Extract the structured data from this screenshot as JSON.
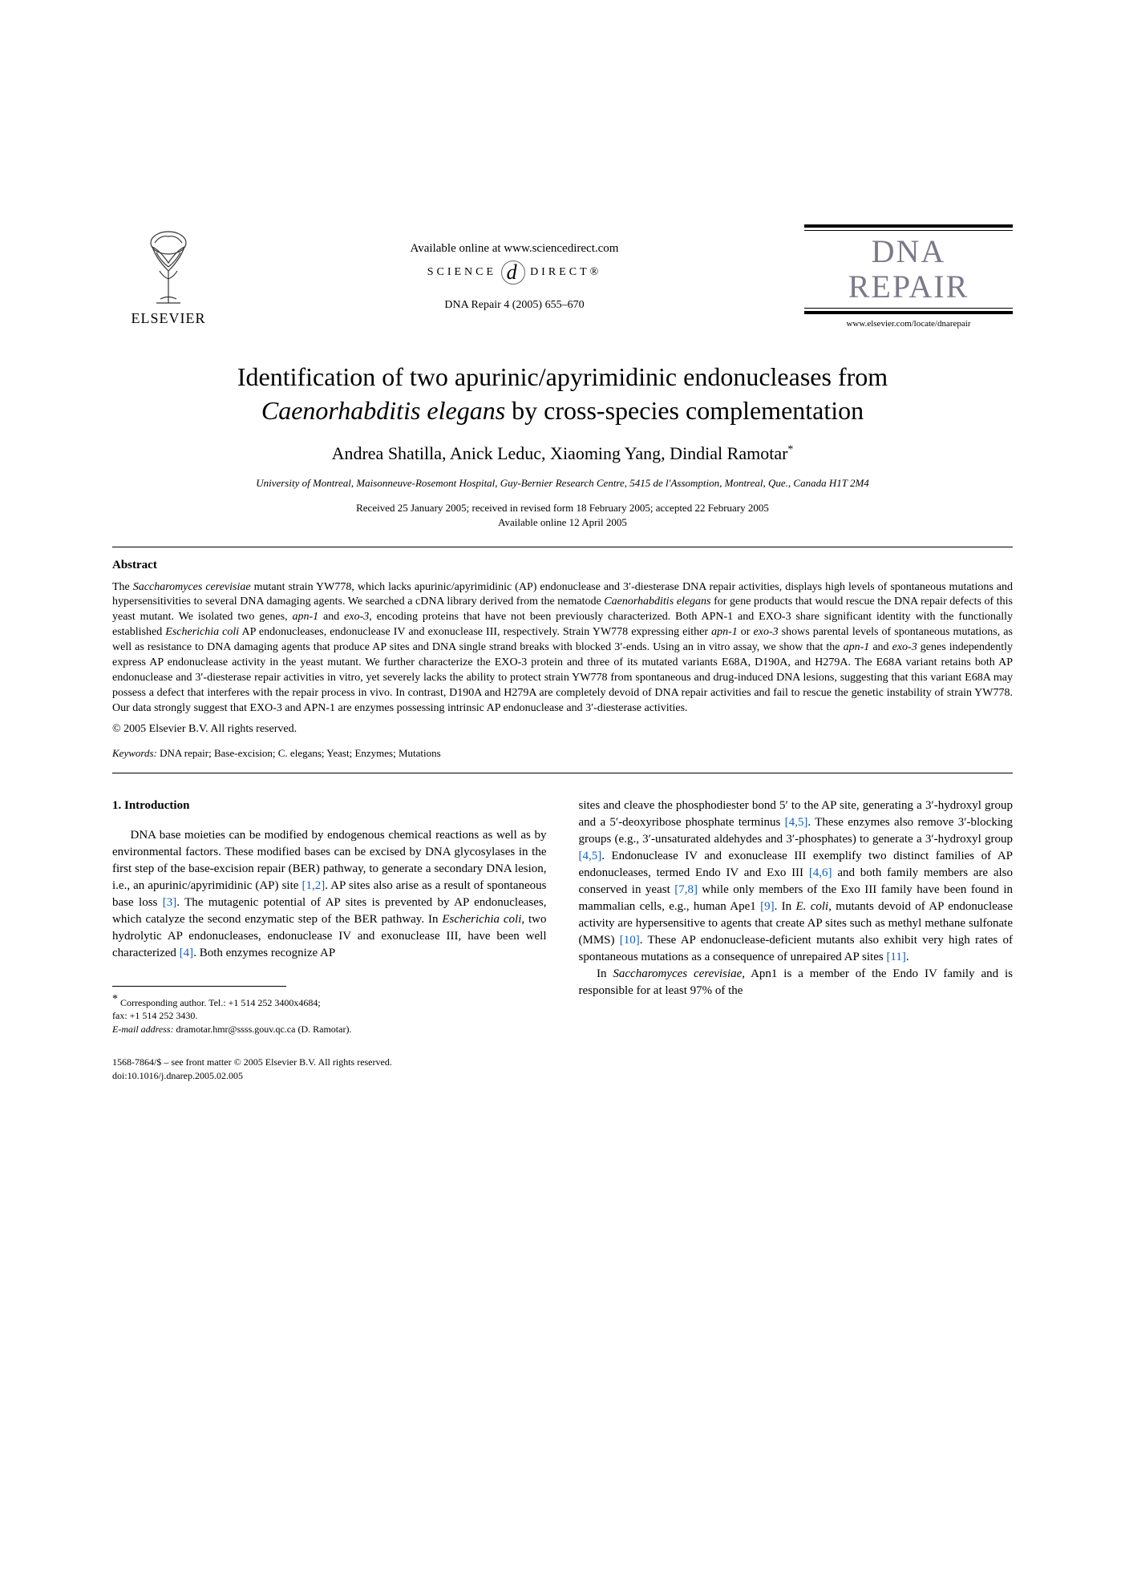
{
  "header": {
    "publisher_name": "ELSEVIER",
    "available_online": "Available online at www.sciencedirect.com",
    "sciencedirect_left": "SCIENCE",
    "sciencedirect_right": "DIRECT®",
    "journal_ref": "DNA Repair 4 (2005) 655–670",
    "journal_title_line1": "DNA",
    "journal_title_line2": "REPAIR",
    "journal_url": "www.elsevier.com/locate/dnarepair"
  },
  "title": {
    "line1": "Identification of two apurinic/apyrimidinic endonucleases from",
    "line2_italic": "Caenorhabditis elegans",
    "line2_rest": " by cross-species complementation"
  },
  "authors": "Andrea Shatilla, Anick Leduc, Xiaoming Yang, Dindial Ramotar",
  "corr_mark": "*",
  "affiliation": "University of Montreal, Maisonneuve-Rosemont Hospital, Guy-Bernier Research Centre, 5415 de l'Assomption, Montreal, Que., Canada H1T 2M4",
  "dates": {
    "line1": "Received 25 January 2005; received in revised form 18 February 2005; accepted 22 February 2005",
    "line2": "Available online 12 April 2005"
  },
  "abstract": {
    "heading": "Abstract",
    "body_html": "The <span class='italic'>Saccharomyces cerevisiae</span> mutant strain YW778, which lacks apurinic/apyrimidinic (AP) endonuclease and 3′-diesterase DNA repair activities, displays high levels of spontaneous mutations and hypersensitivities to several DNA damaging agents. We searched a cDNA library derived from the nematode <span class='italic'>Caenorhabditis elegans</span> for gene products that would rescue the DNA repair defects of this yeast mutant. We isolated two genes, <span class='italic'>apn-1</span> and <span class='italic'>exo-3</span>, encoding proteins that have not been previously characterized. Both APN-1 and EXO-3 share significant identity with the functionally established <span class='italic'>Escherichia coli</span> AP endonucleases, endonuclease IV and exonuclease III, respectively. Strain YW778 expressing either <span class='italic'>apn-1</span> or <span class='italic'>exo-3</span> shows parental levels of spontaneous mutations, as well as resistance to DNA damaging agents that produce AP sites and DNA single strand breaks with blocked 3′-ends. Using an in vitro assay, we show that the <span class='italic'>apn-1</span> and <span class='italic'>exo-3</span> genes independently express AP endonuclease activity in the yeast mutant. We further characterize the EXO-3 protein and three of its mutated variants E68A, D190A, and H279A. The E68A variant retains both AP endonuclease and 3′-diesterase repair activities in vitro, yet severely lacks the ability to protect strain YW778 from spontaneous and drug-induced DNA lesions, suggesting that this variant E68A may possess a defect that interferes with the repair process in vivo. In contrast, D190A and H279A are completely devoid of DNA repair activities and fail to rescue the genetic instability of strain YW778. Our data strongly suggest that EXO-3 and APN-1 are enzymes possessing intrinsic AP endonuclease and 3′-diesterase activities.",
    "copyright": "© 2005 Elsevier B.V. All rights reserved."
  },
  "keywords": {
    "label": "Keywords:",
    "text": "  DNA repair; Base-excision; C. elegans; Yeast; Enzymes; Mutations"
  },
  "intro": {
    "heading": "1.  Introduction",
    "col1_html": "DNA base moieties can be modified by endogenous chemical reactions as well as by environmental factors. These modified bases can be excised by DNA glycosylases in the first step of the base-excision repair (BER) pathway, to generate a secondary DNA lesion, i.e., an apurinic/apyrimidinic (AP) site <span class='ref'>[1,2]</span>. AP sites also arise as a result of spontaneous base loss <span class='ref'>[3]</span>. The mutagenic potential of AP sites is prevented by AP endonucleases, which catalyze the second enzymatic step of the BER pathway. In <span class='italic'>Escherichia coli</span>, two hydrolytic AP endonucleases, endonuclease IV and exonuclease III, have been well characterized <span class='ref'>[4]</span>. Both enzymes recognize AP",
    "col2_para1_html": "sites and cleave the phosphodiester bond 5′ to the AP site, generating a 3′-hydroxyl group and a 5′-deoxyribose phosphate terminus <span class='ref'>[4,5]</span>. These enzymes also remove 3′-blocking groups (e.g., 3′-unsaturated aldehydes and 3′-phosphates) to generate a 3′-hydroxyl group <span class='ref'>[4,5]</span>. Endonuclease IV and exonuclease III exemplify two distinct families of AP endonucleases, termed Endo IV and Exo III <span class='ref'>[4,6]</span> and both family members are also conserved in yeast <span class='ref'>[7,8]</span> while only members of the Exo III family have been found in mammalian cells, e.g., human Ape1 <span class='ref'>[9]</span>. In <span class='italic'>E. coli</span>, mutants devoid of AP endonuclease activity are hypersensitive to agents that create AP sites such as methyl methane sulfonate (MMS) <span class='ref'>[10]</span>. These AP endonuclease-deficient mutants also exhibit very high rates of spontaneous mutations as a consequence of unrepaired AP sites <span class='ref'>[11]</span>.",
    "col2_para2_html": "In <span class='italic'>Saccharomyces cerevisiae</span>, Apn1 is a member of the Endo IV family and is responsible for at least 97% of the"
  },
  "footnotes": {
    "corr": "Corresponding author. Tel.: +1 514 252 3400x4684;",
    "fax": "fax: +1 514 252 3430.",
    "email_label": "E-mail address:",
    "email": " dramotar.hmr@ssss.gouv.qc.ca (D. Ramotar)."
  },
  "bottom": {
    "issn": "1568-7864/$ – see front matter © 2005 Elsevier B.V. All rights reserved.",
    "doi": "doi:10.1016/j.dnarep.2005.02.005"
  },
  "colors": {
    "link": "#1060c0",
    "journal_title": "#7a7a8a"
  }
}
